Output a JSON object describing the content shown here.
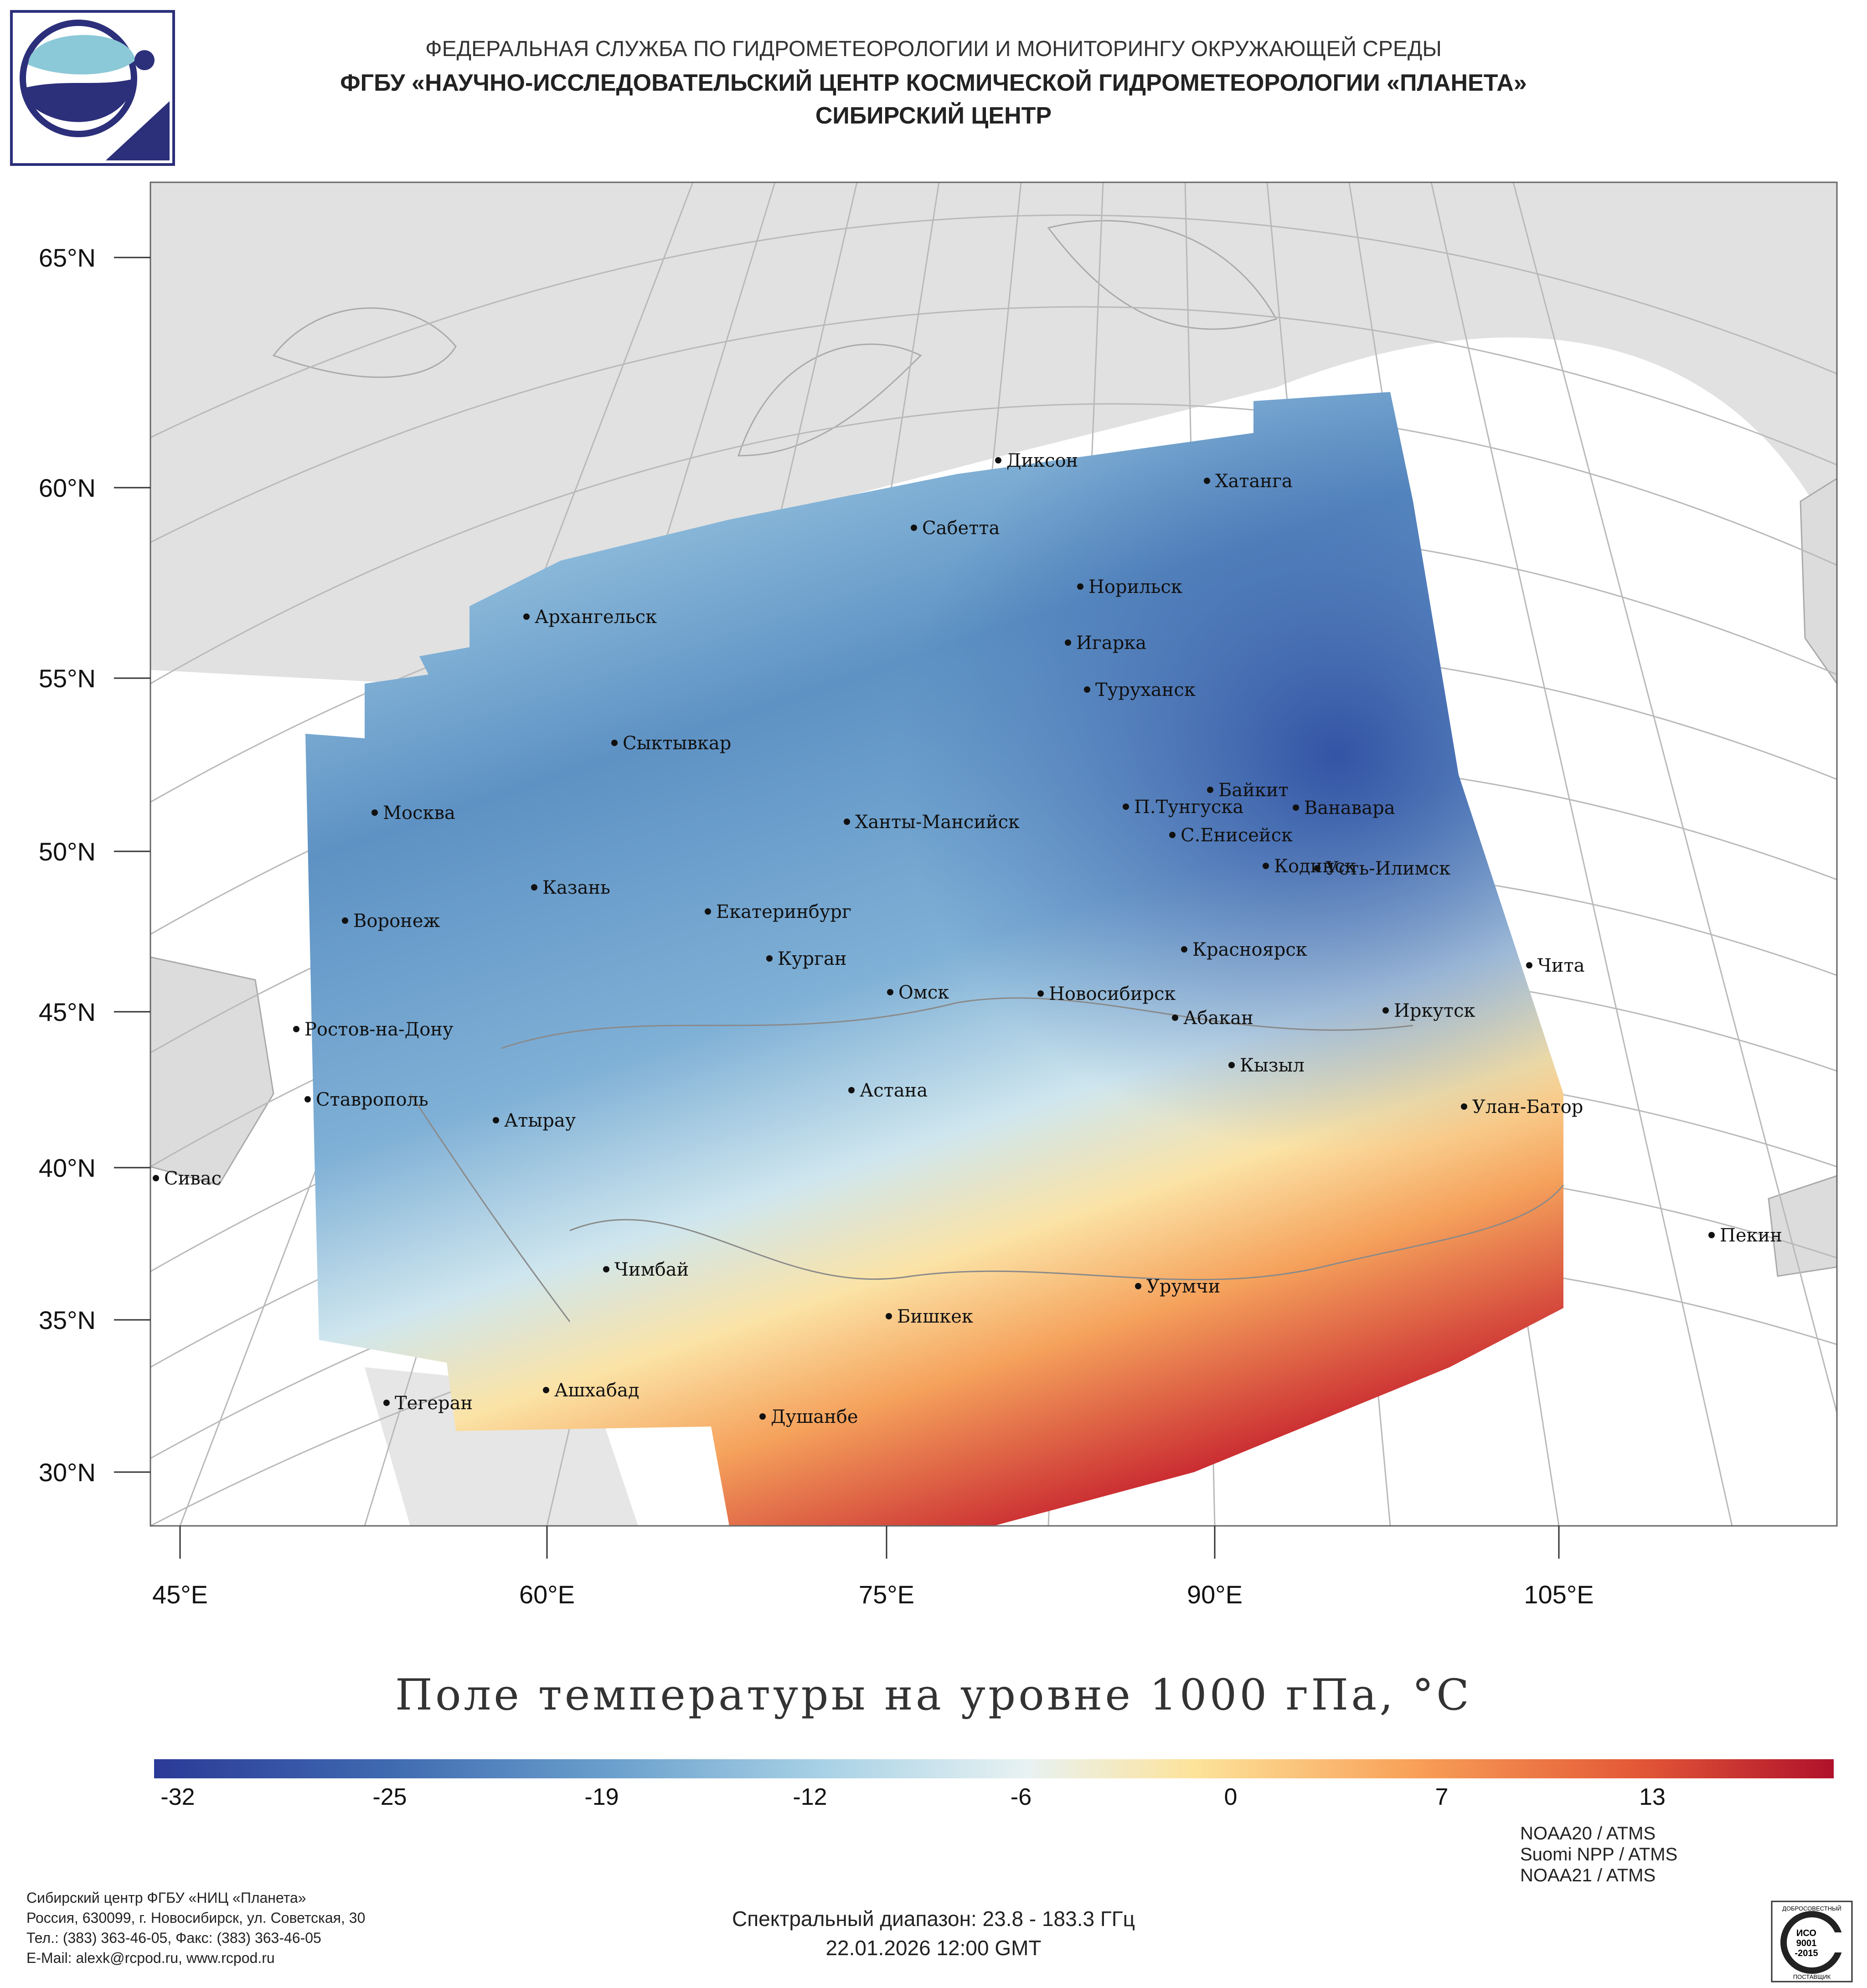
{
  "header": {
    "line1": "ФЕДЕРАЛЬНАЯ СЛУЖБА ПО ГИДРОМЕТЕОРОЛОГИИ И МОНИТОРИНГУ ОКРУЖАЮЩЕЙ СРЕДЫ",
    "line2": "ФГБУ «НАУЧНО-ИССЛЕДОВАТЕЛЬСКИЙ ЦЕНТР КОСМИЧЕСКОЙ ГИДРОМЕТЕОРОЛОГИИ «ПЛАНЕТА»",
    "line3": "СИБИРСКИЙ ЦЕНТР"
  },
  "map": {
    "lat_labels": [
      "65°N",
      "60°N",
      "55°N",
      "50°N",
      "45°N",
      "40°N",
      "35°N",
      "30°N"
    ],
    "lon_labels": [
      "45°E",
      "60°E",
      "75°E",
      "90°E",
      "105°E"
    ],
    "cities": [
      {
        "name": "Диксон",
        "dot": true
      },
      {
        "name": "Хатанга",
        "dot": true
      },
      {
        "name": "Сабетта",
        "dot": true
      },
      {
        "name": "Норильск",
        "dot": true
      },
      {
        "name": "Архангельск",
        "dot": true
      },
      {
        "name": "Игарка",
        "dot": true
      },
      {
        "name": "Туруханск",
        "dot": true
      },
      {
        "name": "Сыктывкар",
        "dot": true
      },
      {
        "name": "Байкит",
        "dot": true
      },
      {
        "name": "П.Тунгуска",
        "dot": true
      },
      {
        "name": "Ванавара",
        "dot": true
      },
      {
        "name": "Москва",
        "dot": true
      },
      {
        "name": "Ханты-Мансийск",
        "dot": true
      },
      {
        "name": "С.Енисейск",
        "dot": true
      },
      {
        "name": "Кодинск",
        "dot": true
      },
      {
        "name": "Усть-Илимск",
        "dot": true
      },
      {
        "name": "Казань",
        "dot": true
      },
      {
        "name": "Екатеринбург",
        "dot": true
      },
      {
        "name": "Воронеж",
        "dot": true
      },
      {
        "name": "Красноярск",
        "dot": true
      },
      {
        "name": "Курган",
        "dot": true
      },
      {
        "name": "Чита",
        "dot": true
      },
      {
        "name": "Омск",
        "dot": true
      },
      {
        "name": "Новосибирск",
        "dot": true
      },
      {
        "name": "Иркутск",
        "dot": true
      },
      {
        "name": "Абакан",
        "dot": true
      },
      {
        "name": "Ростов-на-Дону",
        "dot": true
      },
      {
        "name": "Кызыл",
        "dot": true
      },
      {
        "name": "Ставрополь",
        "dot": true
      },
      {
        "name": "Астана",
        "dot": true
      },
      {
        "name": "Улан-Батор",
        "dot": true
      },
      {
        "name": "Атырау",
        "dot": true
      },
      {
        "name": "Сивас",
        "dot": true
      },
      {
        "name": "Пекин",
        "dot": true
      },
      {
        "name": "Чимбай",
        "dot": true
      },
      {
        "name": "Урумчи",
        "dot": true
      },
      {
        "name": "Бишкек",
        "dot": true
      },
      {
        "name": "Ашхабад",
        "dot": true
      },
      {
        "name": "Тегеран",
        "dot": true
      },
      {
        "name": "Душанбе",
        "dot": true
      }
    ]
  },
  "colorbar": {
    "title": "Поле температуры на уровне 1000 гПа, °C",
    "ticks": [
      "-32",
      "-25",
      "-19",
      "-12",
      "-6",
      "0",
      "7",
      "13"
    ],
    "min": -32,
    "max": 17,
    "colors": [
      "#2b3a97",
      "#3f6ab0",
      "#6a9fcc",
      "#a9d2e6",
      "#e8f2f2",
      "#fde39a",
      "#f8a058",
      "#e45a37",
      "#b0112b"
    ]
  },
  "footer": {
    "address": [
      "Сибирский центр ФГБУ «НИЦ «Планета»",
      "Россия, 630099, г. Новосибирск, ул. Советская, 30",
      "Тел.: (383) 363-46-05, Факс: (383) 363-46-05",
      "E-Mail: alexk@rcpod.ru, www.rcpod.ru"
    ],
    "satellites": [
      "NOAA20 / ATMS",
      "Suomi NPP / ATMS",
      "NOAA21 / ATMS"
    ],
    "spectral": "Спектральный диапазон: 23.8 - 183.3 ГГц",
    "datetime": "22.01.2026 12:00 GMT",
    "iso_badge": {
      "top": "ДОБРОСОВЕСТНЫЙ",
      "mid1": "ИСО",
      "mid2": "9001",
      "mid3": "-2015",
      "bottom": "ПОСТАВЩИК"
    }
  }
}
